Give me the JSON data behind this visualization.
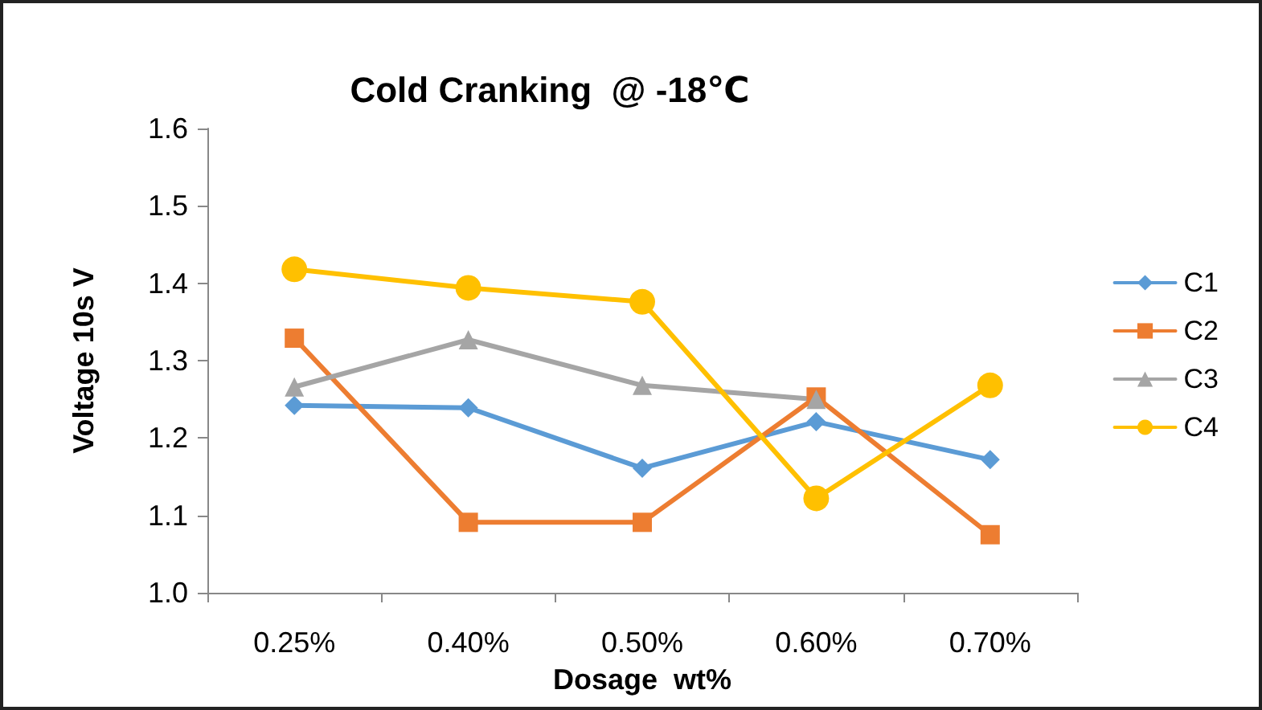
{
  "chart_data": {
    "type": "line",
    "title": "Cold Cranking  @ -18℃",
    "xlabel": "Dosage  wt%",
    "ylabel": "Voltage 10s V",
    "categories": [
      "0.25%",
      "0.40%",
      "0.50%",
      "0.60%",
      "0.70%"
    ],
    "series": [
      {
        "name": "C1",
        "color": "#5b9bd5",
        "marker": "diamond",
        "values": [
          1.242,
          1.239,
          1.161,
          1.221,
          1.172
        ]
      },
      {
        "name": "C2",
        "color": "#ed7d31",
        "marker": "square",
        "values": [
          1.329,
          1.091,
          1.091,
          1.253,
          1.075
        ]
      },
      {
        "name": "C3",
        "color": "#a5a5a5",
        "marker": "triangle",
        "values": [
          1.266,
          1.327,
          1.268,
          1.25,
          null
        ]
      },
      {
        "name": "C4",
        "color": "#ffc000",
        "marker": "circle",
        "values": [
          1.418,
          1.394,
          1.376,
          1.122,
          1.268
        ]
      }
    ],
    "ylim": [
      1.0,
      1.6
    ],
    "yticks": [
      {
        "value": 1,
        "label": "1.0"
      },
      1.1,
      1.2,
      1.3,
      1.4,
      1.5,
      {
        "value": 1.6,
        "label": "1.6"
      }
    ],
    "grid": false,
    "legend": "right",
    "line_style": "solid"
  }
}
